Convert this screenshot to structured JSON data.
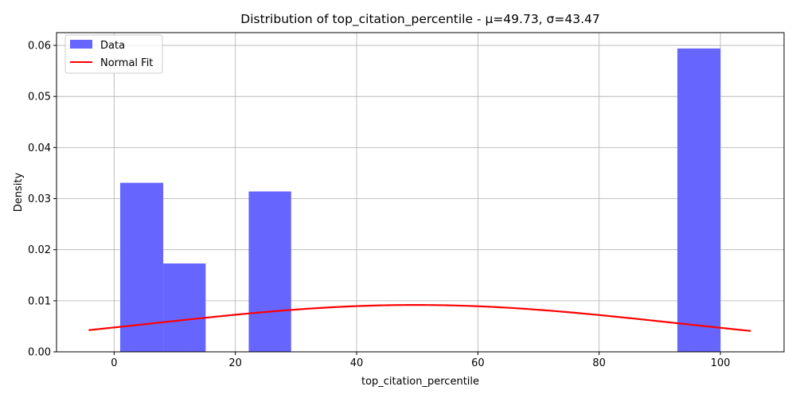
{
  "chart_data": {
    "type": "bar",
    "title": "Distribution of top_citation_percentile - μ=49.73, σ=43.47",
    "xlabel": "top_citation_percentile",
    "ylabel": "Density",
    "xlim": [
      -9.5,
      110.5
    ],
    "ylim": [
      0,
      0.0625
    ],
    "grid": true,
    "legend_position": "top-left",
    "xticks": [
      0,
      20,
      40,
      60,
      80,
      100
    ],
    "xtick_labels": [
      "0",
      "20",
      "40",
      "60",
      "80",
      "100"
    ],
    "yticks": [
      0.0,
      0.01,
      0.02,
      0.03,
      0.04,
      0.05,
      0.06
    ],
    "ytick_labels": [
      "0.00",
      "0.01",
      "0.02",
      "0.03",
      "0.04",
      "0.05",
      "0.06"
    ],
    "histogram": {
      "name": "Data",
      "color": "#6666ff",
      "bins": [
        {
          "x0": 1,
          "x1": 8.1,
          "density": 0.0331
        },
        {
          "x0": 8.1,
          "x1": 15.1,
          "density": 0.0173
        },
        {
          "x0": 15.1,
          "x1": 22.2,
          "density": 0
        },
        {
          "x0": 22.2,
          "x1": 29.2,
          "density": 0.0314
        },
        {
          "x0": 29.2,
          "x1": 36.3,
          "density": 0
        },
        {
          "x0": 36.3,
          "x1": 43.3,
          "density": 0
        },
        {
          "x0": 43.3,
          "x1": 50.4,
          "density": 0
        },
        {
          "x0": 50.4,
          "x1": 57.4,
          "density": 0
        },
        {
          "x0": 57.4,
          "x1": 64.5,
          "density": 0
        },
        {
          "x0": 64.5,
          "x1": 71.5,
          "density": 0
        },
        {
          "x0": 71.5,
          "x1": 78.6,
          "density": 0
        },
        {
          "x0": 78.6,
          "x1": 85.6,
          "density": 0
        },
        {
          "x0": 85.6,
          "x1": 92.9,
          "density": 0
        },
        {
          "x0": 92.9,
          "x1": 100,
          "density": 0.0594
        }
      ]
    },
    "normal_fit": {
      "name": "Normal Fit",
      "color": "#ff0000",
      "mu": 49.73,
      "sigma": 43.47,
      "x_range": [
        -4.2,
        105
      ]
    }
  }
}
